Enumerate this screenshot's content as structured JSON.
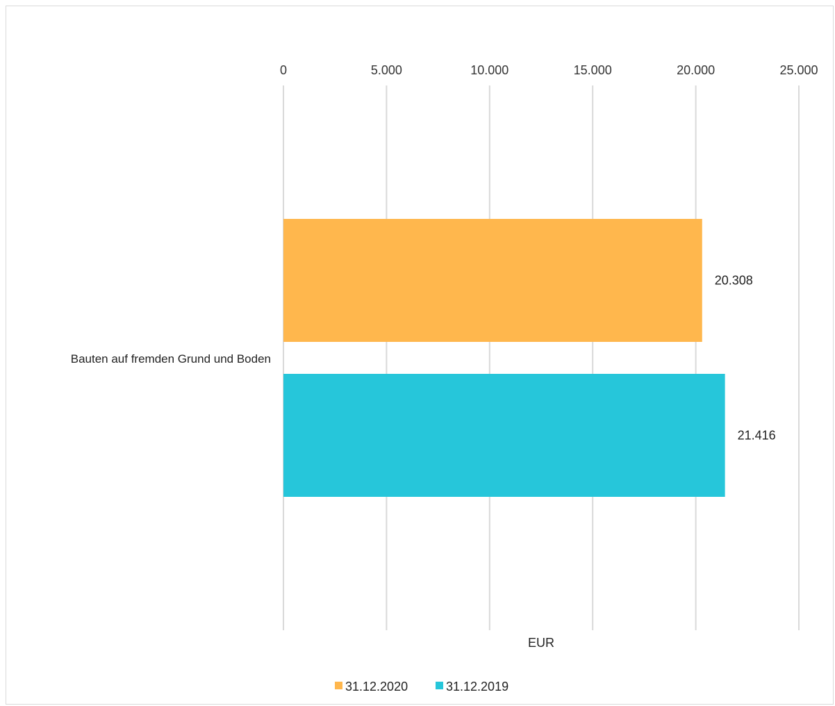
{
  "chart_data": {
    "type": "bar",
    "orientation": "horizontal",
    "categories": [
      "Bauten auf fremden Grund und Boden"
    ],
    "series": [
      {
        "name": "31.12.2020",
        "values": [
          20308
        ],
        "color": "#FFB74D"
      },
      {
        "name": "31.12.2019",
        "values": [
          21416
        ],
        "color": "#26C6DA"
      }
    ],
    "data_labels": [
      "20.308",
      "21.416"
    ],
    "xlim": [
      0,
      25000
    ],
    "ticks": [
      0,
      5000,
      10000,
      15000,
      20000,
      25000
    ],
    "tick_labels": [
      "0",
      "5.000",
      "10.000",
      "15.000",
      "20.000",
      "25.000"
    ],
    "xlabel": "EUR",
    "title": "",
    "grid": true,
    "axis_position": "top",
    "legend_position": "bottom",
    "gridline_color": "#d9d9d9"
  }
}
